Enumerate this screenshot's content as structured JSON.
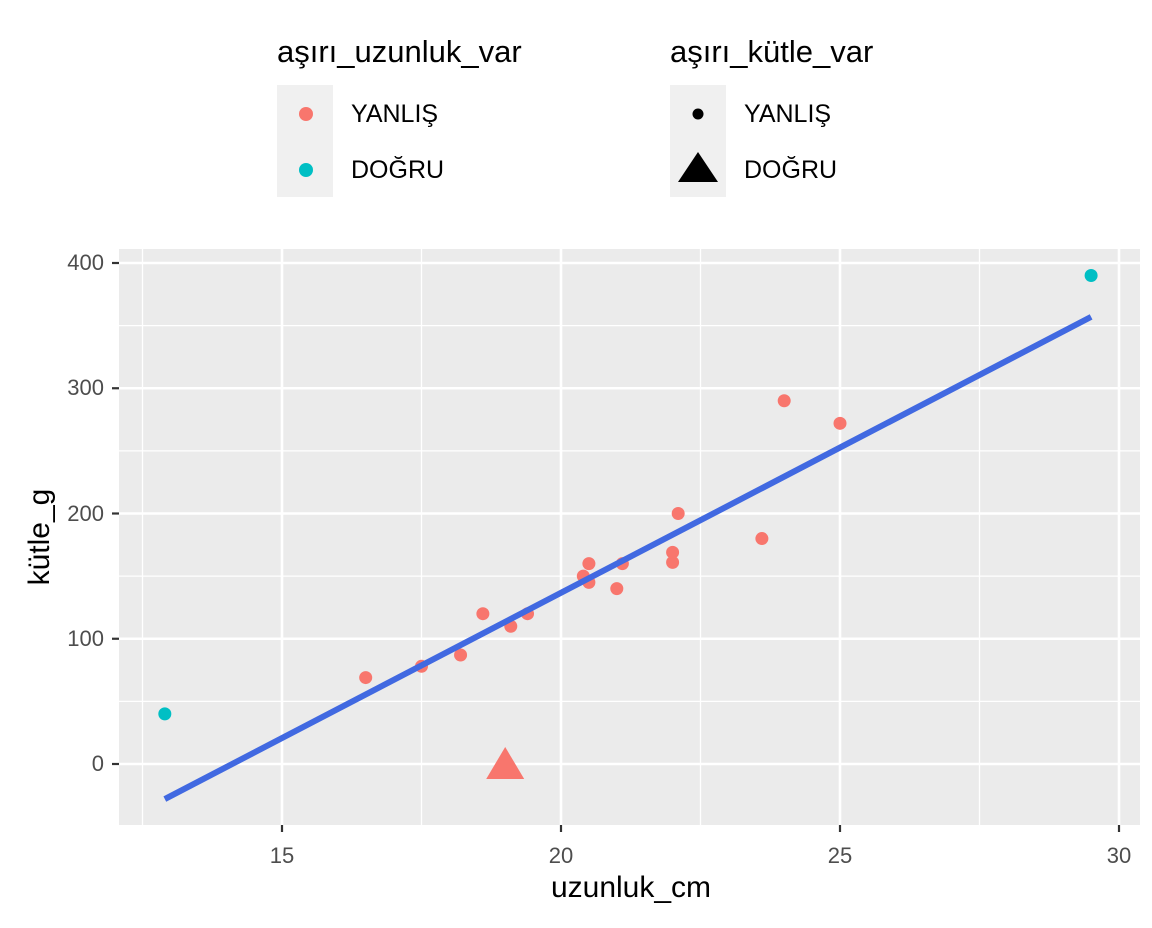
{
  "chart_data": {
    "type": "scatter",
    "title": "",
    "xlabel": "uzunluk_cm",
    "ylabel": "kütle_g",
    "xlim": [
      12.3,
      30.4
    ],
    "ylim": [
      -48,
      411
    ],
    "x_ticks": [
      15,
      20,
      25,
      30
    ],
    "y_ticks": [
      0,
      100,
      200,
      300,
      400
    ],
    "grid": true,
    "legend_position": "top",
    "legends": [
      {
        "title": "aşırı_uzunluk_var",
        "aesthetic": "color",
        "entries": [
          {
            "label": "YANLIŞ",
            "color": "#F8766D"
          },
          {
            "label": "DOĞRU",
            "color": "#00BFC4"
          }
        ]
      },
      {
        "title": "aşırı_kütle_var",
        "aesthetic": "shape",
        "entries": [
          {
            "label": "YANLIŞ",
            "shape": "circle"
          },
          {
            "label": "DOĞRU",
            "shape": "triangle"
          }
        ]
      }
    ],
    "series": [
      {
        "name": "points",
        "points": [
          {
            "x": 12.9,
            "y": 40,
            "aşırı_uzunluk_var": "DOĞRU",
            "aşırı_kütle_var": "YANLIŞ"
          },
          {
            "x": 16.5,
            "y": 69,
            "aşırı_uzunluk_var": "YANLIŞ",
            "aşırı_kütle_var": "YANLIŞ"
          },
          {
            "x": 17.5,
            "y": 78,
            "aşırı_uzunluk_var": "YANLIŞ",
            "aşırı_kütle_var": "YANLIŞ"
          },
          {
            "x": 18.2,
            "y": 87,
            "aşırı_uzunluk_var": "YANLIŞ",
            "aşırı_kütle_var": "YANLIŞ"
          },
          {
            "x": 18.6,
            "y": 120,
            "aşırı_uzunluk_var": "YANLIŞ",
            "aşırı_kütle_var": "YANLIŞ"
          },
          {
            "x": 19.0,
            "y": 0,
            "aşırı_uzunluk_var": "YANLIŞ",
            "aşırı_kütle_var": "DOĞRU"
          },
          {
            "x": 19.1,
            "y": 110,
            "aşırı_uzunluk_var": "YANLIŞ",
            "aşırı_kütle_var": "YANLIŞ"
          },
          {
            "x": 19.4,
            "y": 120,
            "aşırı_uzunluk_var": "YANLIŞ",
            "aşırı_kütle_var": "YANLIŞ"
          },
          {
            "x": 20.4,
            "y": 150,
            "aşırı_uzunluk_var": "YANLIŞ",
            "aşırı_kütle_var": "YANLIŞ"
          },
          {
            "x": 20.5,
            "y": 160,
            "aşırı_uzunluk_var": "YANLIŞ",
            "aşırı_kütle_var": "YANLIŞ"
          },
          {
            "x": 20.5,
            "y": 145,
            "aşırı_uzunluk_var": "YANLIŞ",
            "aşırı_kütle_var": "YANLIŞ"
          },
          {
            "x": 21.0,
            "y": 140,
            "aşırı_uzunluk_var": "YANLIŞ",
            "aşırı_kütle_var": "YANLIŞ"
          },
          {
            "x": 21.1,
            "y": 160,
            "aşırı_uzunluk_var": "YANLIŞ",
            "aşırı_kütle_var": "YANLIŞ"
          },
          {
            "x": 22.0,
            "y": 161,
            "aşırı_uzunluk_var": "YANLIŞ",
            "aşırı_kütle_var": "YANLIŞ"
          },
          {
            "x": 22.0,
            "y": 169,
            "aşırı_uzunluk_var": "YANLIŞ",
            "aşırı_kütle_var": "YANLIŞ"
          },
          {
            "x": 22.1,
            "y": 200,
            "aşırı_uzunluk_var": "YANLIŞ",
            "aşırı_kütle_var": "YANLIŞ"
          },
          {
            "x": 23.6,
            "y": 180,
            "aşırı_uzunluk_var": "YANLIŞ",
            "aşırı_kütle_var": "YANLIŞ"
          },
          {
            "x": 24.0,
            "y": 290,
            "aşırı_uzunluk_var": "YANLIŞ",
            "aşırı_kütle_var": "YANLIŞ"
          },
          {
            "x": 25.0,
            "y": 272,
            "aşırı_uzunluk_var": "YANLIŞ",
            "aşırı_kütle_var": "YANLIŞ"
          },
          {
            "x": 29.5,
            "y": 390,
            "aşırı_uzunluk_var": "DOĞRU",
            "aşırı_kütle_var": "YANLIŞ"
          }
        ]
      },
      {
        "name": "linear fit",
        "type": "line",
        "color": "#4169E1",
        "points": [
          {
            "x": 12.9,
            "y": -28
          },
          {
            "x": 29.5,
            "y": 357
          }
        ]
      }
    ]
  },
  "colors": {
    "panel_bg": "#EBEBEB",
    "grid": "#FFFFFF",
    "fit_line": "#4169E1",
    "false_color": "#F8766D",
    "true_color": "#00BFC4"
  }
}
